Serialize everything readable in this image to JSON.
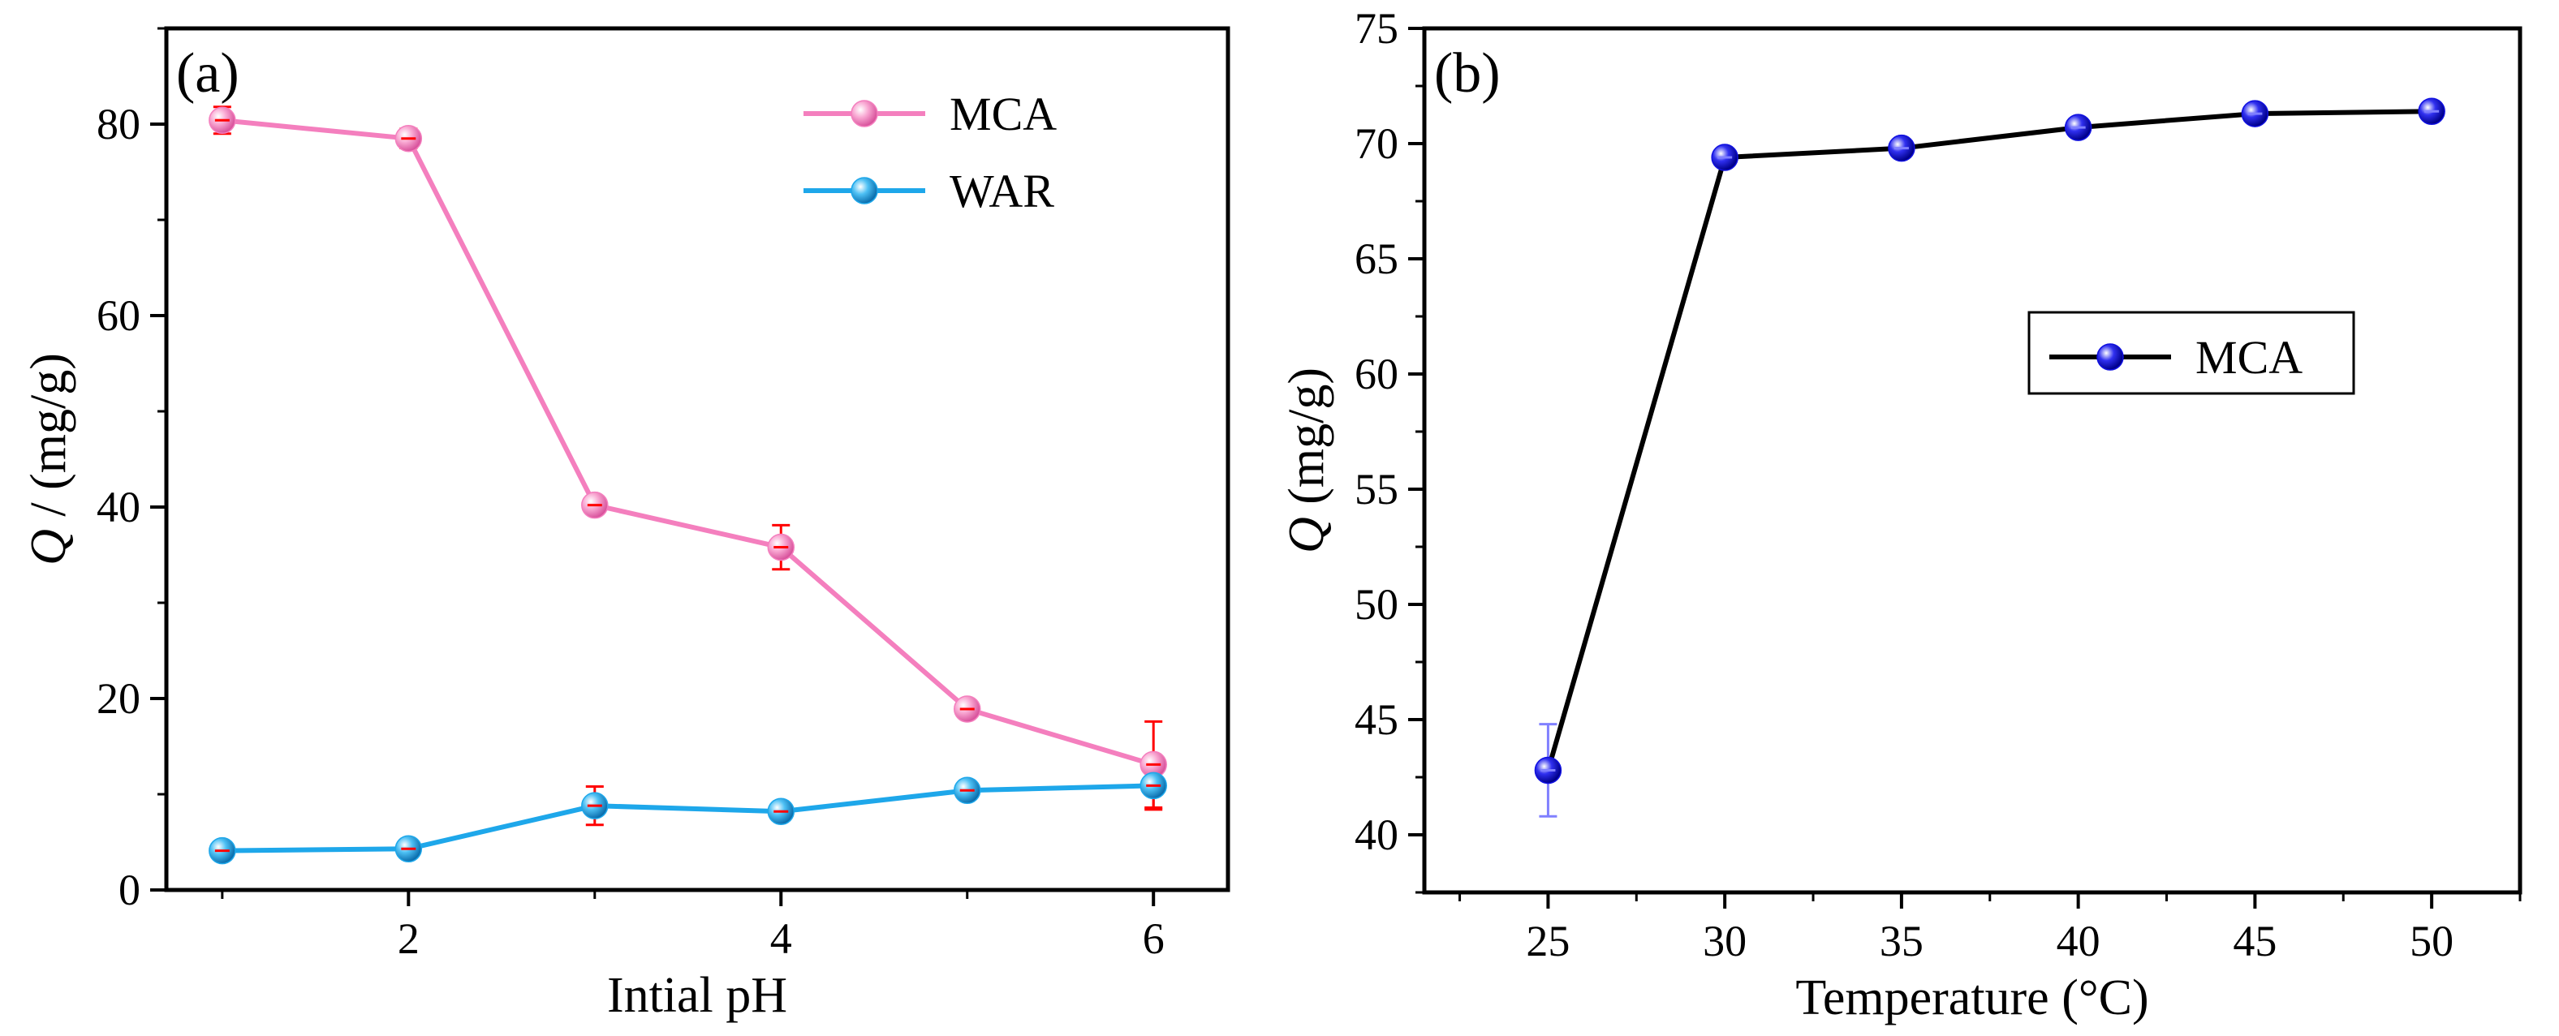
{
  "chart_data": [
    {
      "panel_label": "(a)",
      "type": "line",
      "xlabel": "Intial pH",
      "ylabel_symbol": "Q",
      "ylabel_rest": " / (mg/g)",
      "xlim": [
        0.7,
        6.4
      ],
      "ylim": [
        0,
        90
      ],
      "xticks": [
        2,
        4,
        6
      ],
      "yticks": [
        0,
        20,
        40,
        60,
        80
      ],
      "legend_position": "top-right",
      "error_bar_color": "#ff0000",
      "series": [
        {
          "name": "MCA",
          "color": "#f47fbe",
          "x": [
            1,
            2,
            3,
            4,
            5,
            6
          ],
          "y": [
            80.4,
            78.5,
            40.2,
            35.8,
            18.9,
            13.1
          ],
          "err": [
            1.4,
            1.0,
            0.9,
            2.3,
            0.8,
            4.5
          ]
        },
        {
          "name": "WAR",
          "color": "#1ea7ea",
          "x": [
            1,
            2,
            3,
            4,
            5,
            6
          ],
          "y": [
            4.1,
            4.3,
            8.8,
            8.2,
            10.4,
            10.9
          ],
          "err": [
            0.7,
            0.6,
            2.0,
            0.6,
            0.8,
            2.5
          ]
        }
      ]
    },
    {
      "panel_label": "(b)",
      "type": "line",
      "xlabel": "Temperature (°C)",
      "ylabel_symbol": "Q",
      "ylabel_rest": " (mg/g)",
      "xlim": [
        21.5,
        52.5
      ],
      "ylim": [
        37.5,
        75
      ],
      "xticks": [
        25,
        30,
        35,
        40,
        45,
        50
      ],
      "yticks": [
        40,
        45,
        50,
        55,
        60,
        65,
        70,
        75
      ],
      "legend_position": "center-right",
      "error_bar_color": "#8080ff",
      "series": [
        {
          "name": "MCA",
          "color": "#000000",
          "marker_color": "#1010e0",
          "x": [
            25,
            30,
            35,
            40,
            45,
            50
          ],
          "y": [
            42.8,
            69.4,
            69.8,
            70.7,
            71.3,
            71.4
          ],
          "err": [
            2.0,
            0.2,
            0.2,
            0.2,
            0.2,
            0.2
          ]
        }
      ]
    }
  ]
}
